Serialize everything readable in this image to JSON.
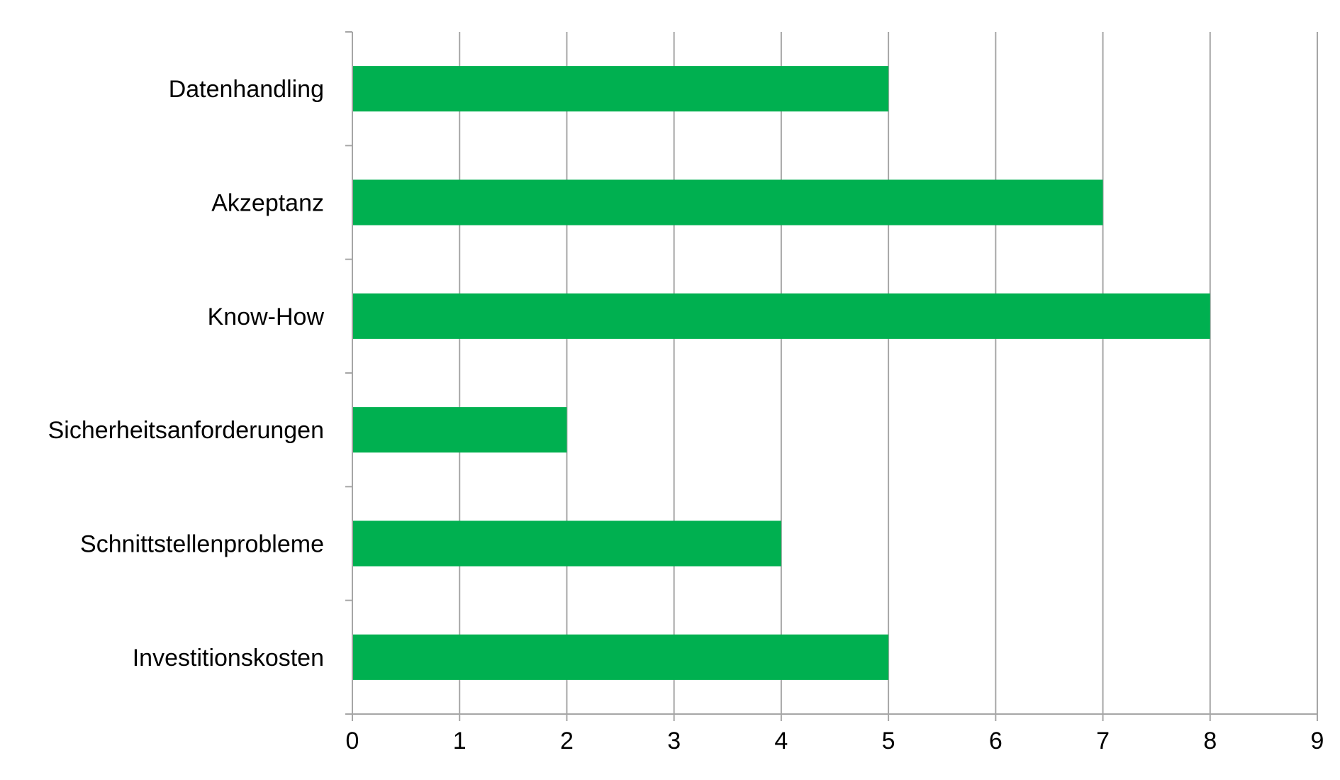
{
  "chart_data": {
    "type": "bar",
    "orientation": "horizontal",
    "categories": [
      "Datenhandling",
      "Akzeptanz",
      "Know-How",
      "Sicherheitsanforderungen",
      "Schnittstellenprobleme",
      "Investitionskosten"
    ],
    "values": [
      5,
      7,
      8,
      2,
      4,
      5
    ],
    "xlim": [
      0,
      9
    ],
    "xticks": [
      "0",
      "1",
      "2",
      "3",
      "4",
      "5",
      "6",
      "7",
      "8",
      "9"
    ],
    "bar_color": "#00b050",
    "grid_color": "#a6a6a6",
    "grid": true,
    "legend": "none",
    "title": "",
    "xlabel": "",
    "ylabel": ""
  }
}
